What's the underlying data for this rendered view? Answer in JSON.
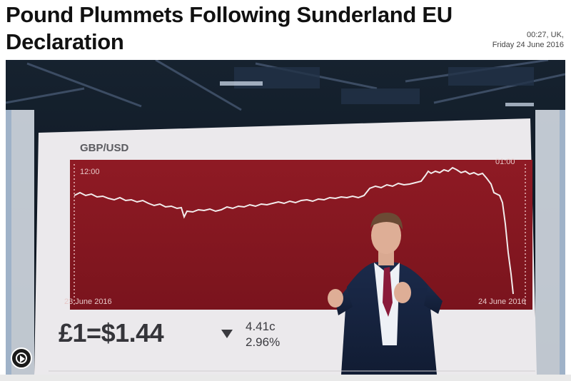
{
  "article": {
    "headline": "Pound Plummets Following Sunderland EU Declaration",
    "time": "00:27, UK,",
    "date": "Friday 24 June 2016"
  },
  "video": {
    "chart": {
      "label": "GBP/USD",
      "time_start": "12:00",
      "time_end": "01:00",
      "date_start": "23 June 2016",
      "date_end": "24 June 2016",
      "price": "£1=$1.44",
      "change_cents": "4.41c",
      "change_percent": "2.96%"
    },
    "play_icon": "play-icon"
  },
  "colors": {
    "chart_red": "#8b1821",
    "screen_white": "#ebe9ec"
  }
}
